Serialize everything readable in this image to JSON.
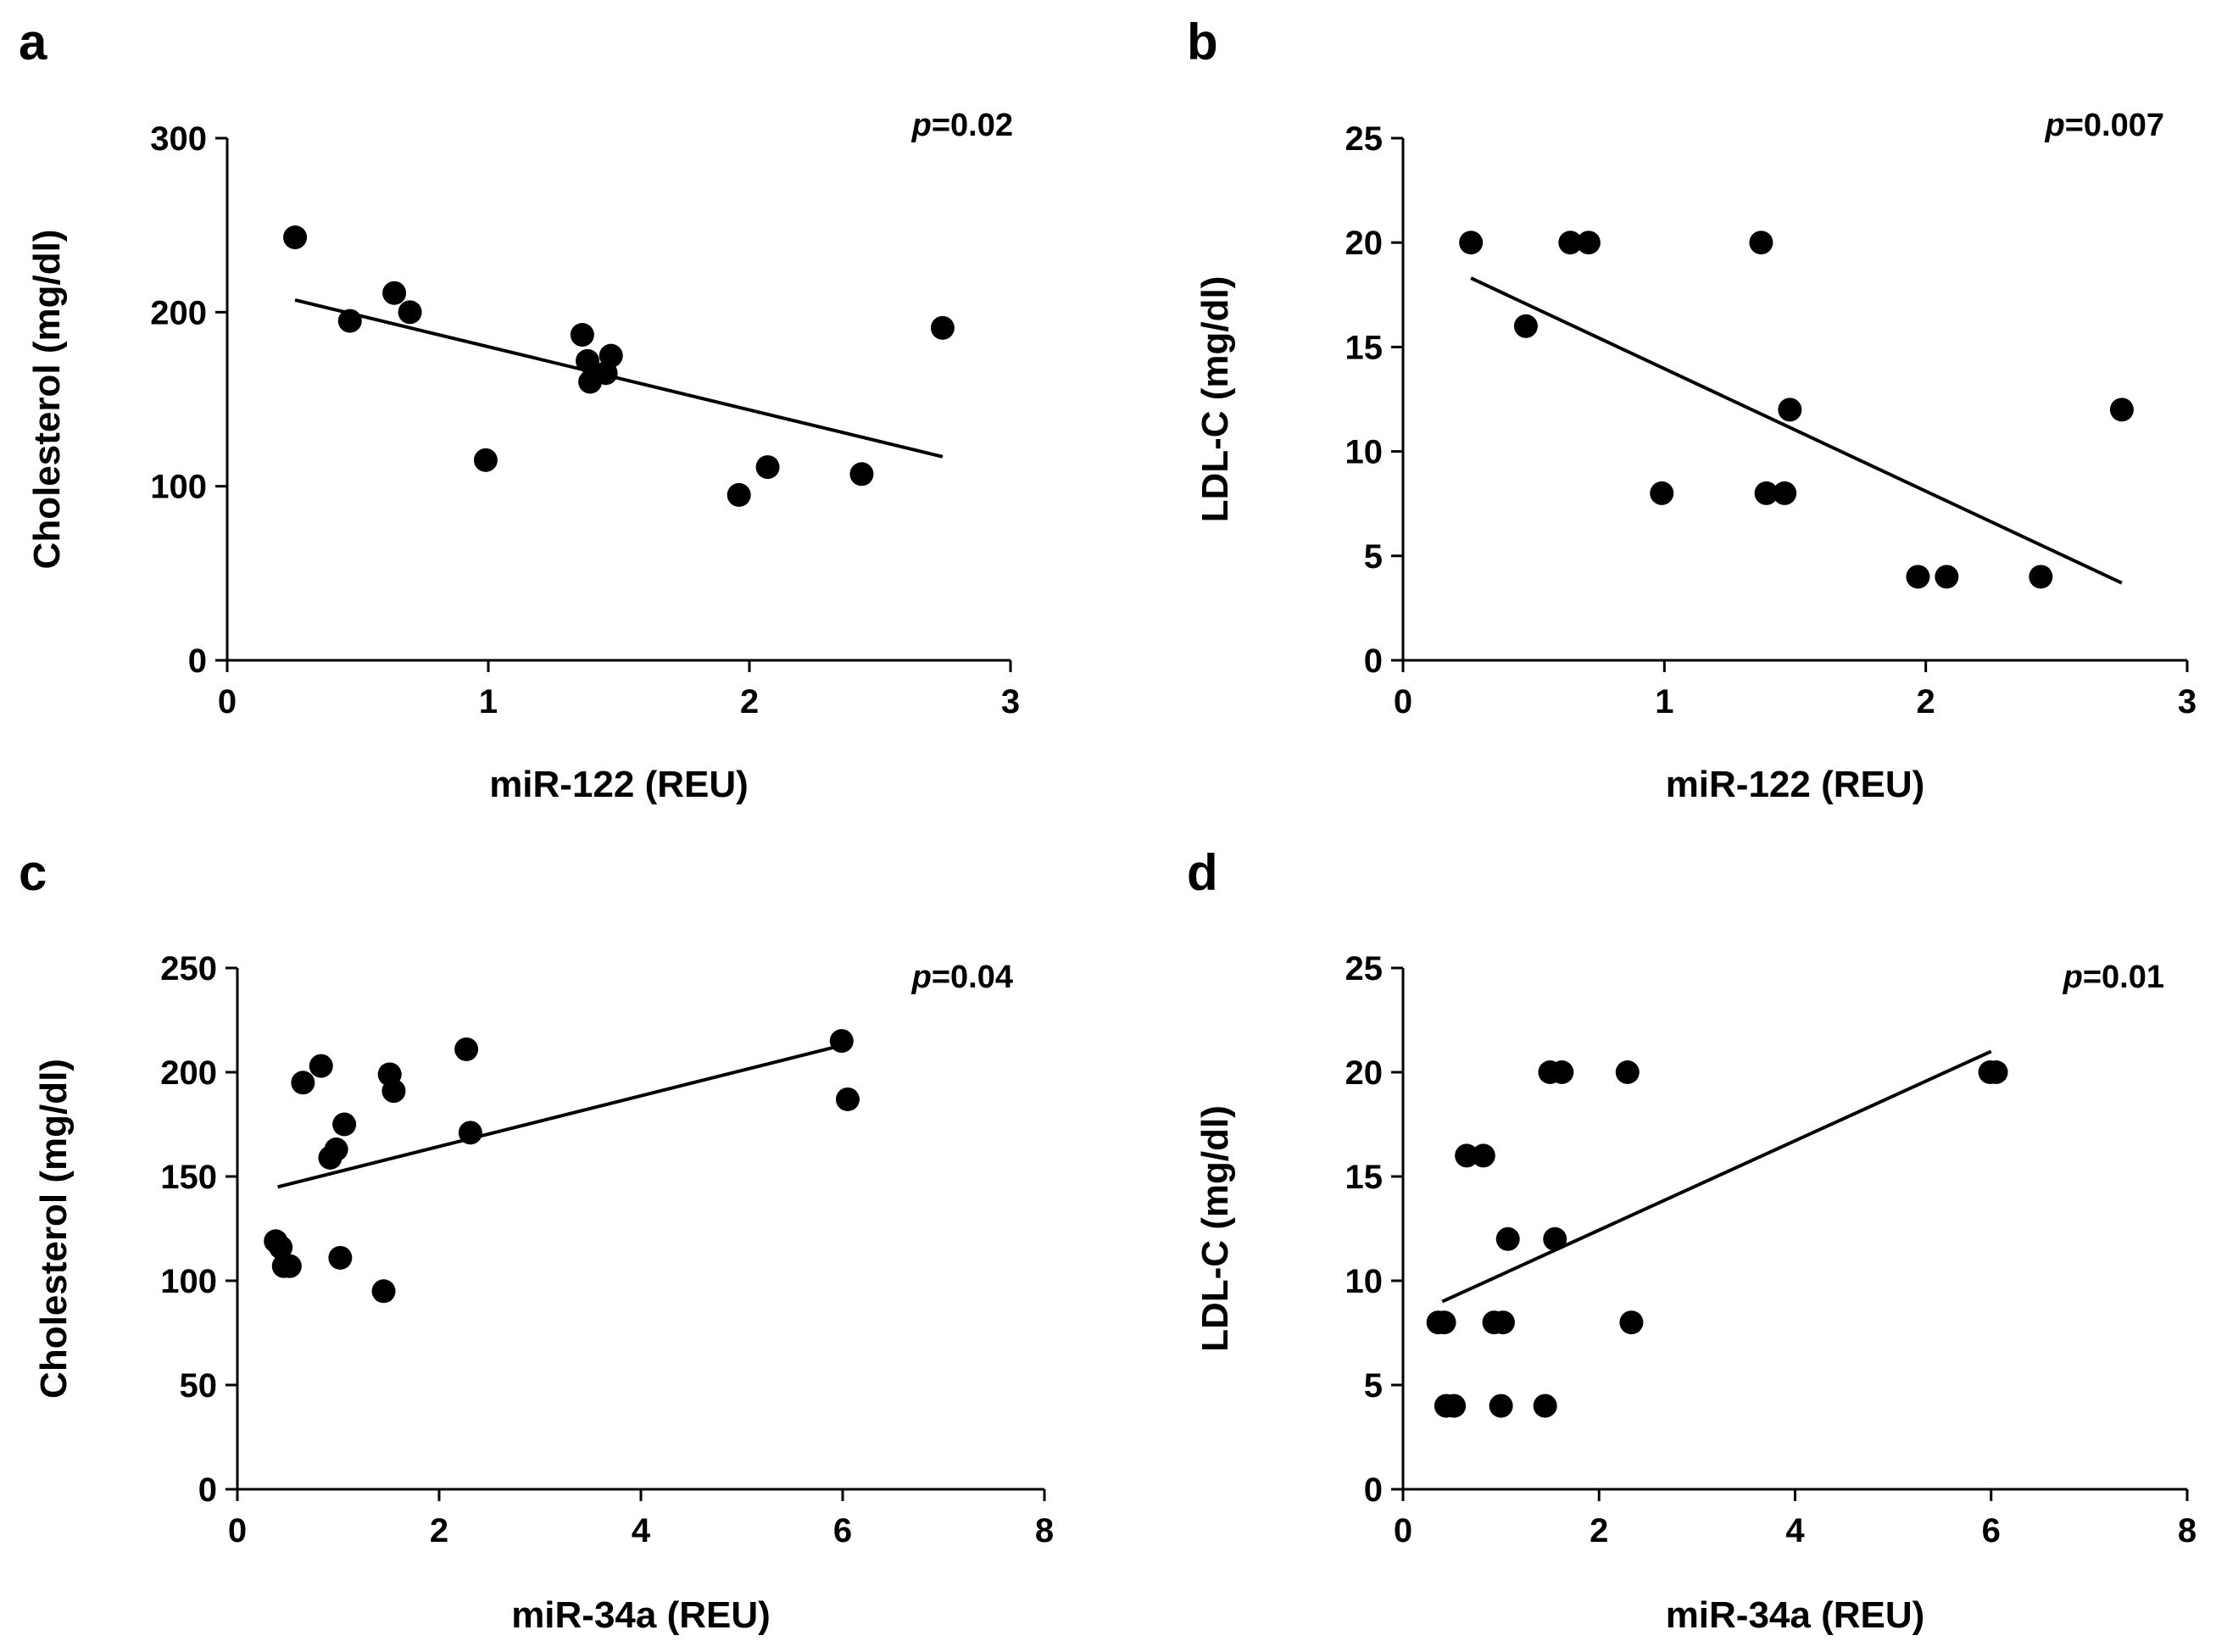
{
  "chart_data": [
    {
      "panel": "a",
      "type": "scatter",
      "xlabel": "miR-122 (REU)",
      "ylabel": "Cholesterol (mg/dl)",
      "xlim": [
        0,
        3
      ],
      "ylim": [
        0,
        300
      ],
      "xticks": [
        0,
        1,
        2,
        3
      ],
      "yticks": [
        0,
        100,
        200,
        300
      ],
      "p_prefix": "p",
      "p_value": "=0.02",
      "points": [
        [
          0.26,
          243
        ],
        [
          0.47,
          195
        ],
        [
          0.64,
          211
        ],
        [
          0.7,
          200
        ],
        [
          0.99,
          115
        ],
        [
          1.36,
          187
        ],
        [
          1.38,
          172
        ],
        [
          1.39,
          160
        ],
        [
          1.45,
          165
        ],
        [
          1.47,
          175
        ],
        [
          1.96,
          95
        ],
        [
          2.07,
          111
        ],
        [
          2.43,
          107
        ],
        [
          2.74,
          191
        ]
      ],
      "fit": [
        [
          0.26,
          207
        ],
        [
          2.74,
          117
        ]
      ]
    },
    {
      "panel": "b",
      "type": "scatter",
      "xlabel": "miR-122 (REU)",
      "ylabel": "LDL-C (mg/dl)",
      "xlim": [
        0,
        3
      ],
      "ylim": [
        0,
        25
      ],
      "xticks": [
        0,
        1,
        2,
        3
      ],
      "yticks": [
        0,
        5,
        10,
        15,
        20,
        25
      ],
      "p_prefix": "p",
      "p_value": "=0.007",
      "points": [
        [
          0.26,
          20
        ],
        [
          0.47,
          16
        ],
        [
          0.64,
          20
        ],
        [
          0.71,
          20
        ],
        [
          0.99,
          8
        ],
        [
          1.37,
          20
        ],
        [
          1.39,
          8
        ],
        [
          1.46,
          8
        ],
        [
          1.48,
          12
        ],
        [
          1.97,
          4
        ],
        [
          2.08,
          4
        ],
        [
          2.44,
          4
        ],
        [
          2.75,
          12
        ]
      ],
      "fit": [
        [
          0.26,
          18.3
        ],
        [
          2.75,
          3.7
        ]
      ]
    },
    {
      "panel": "c",
      "type": "scatter",
      "xlabel": "miR-34a (REU)",
      "ylabel": "Cholesterol (mg/dl)",
      "xlim": [
        0,
        8
      ],
      "ylim": [
        0,
        250
      ],
      "xticks": [
        0,
        2,
        4,
        6,
        8
      ],
      "yticks": [
        0,
        50,
        100,
        150,
        200,
        250
      ],
      "p_prefix": "p",
      "p_value": "=0.04",
      "points": [
        [
          0.38,
          119
        ],
        [
          0.43,
          116
        ],
        [
          0.46,
          107
        ],
        [
          0.52,
          107
        ],
        [
          0.65,
          195
        ],
        [
          0.83,
          203
        ],
        [
          0.92,
          159
        ],
        [
          0.98,
          163
        ],
        [
          1.02,
          111
        ],
        [
          1.06,
          175
        ],
        [
          1.45,
          95
        ],
        [
          1.51,
          199
        ],
        [
          1.55,
          191
        ],
        [
          2.27,
          211
        ],
        [
          2.31,
          171
        ],
        [
          5.99,
          215
        ],
        [
          6.05,
          187
        ]
      ],
      "fit": [
        [
          0.4,
          145
        ],
        [
          6.0,
          213
        ]
      ]
    },
    {
      "panel": "d",
      "type": "scatter",
      "xlabel": "miR-34a (REU)",
      "ylabel": "LDL-C (mg/dl)",
      "xlim": [
        0,
        8
      ],
      "ylim": [
        0,
        25
      ],
      "xticks": [
        0,
        2,
        4,
        6,
        8
      ],
      "yticks": [
        0,
        5,
        10,
        15,
        20,
        25
      ],
      "p_prefix": "p",
      "p_value": "=0.01",
      "points": [
        [
          0.36,
          8
        ],
        [
          0.42,
          8
        ],
        [
          0.44,
          4
        ],
        [
          0.52,
          4
        ],
        [
          0.65,
          16
        ],
        [
          0.82,
          16
        ],
        [
          0.93,
          8
        ],
        [
          1.0,
          4
        ],
        [
          1.02,
          8
        ],
        [
          1.07,
          12
        ],
        [
          1.45,
          4
        ],
        [
          1.5,
          20
        ],
        [
          1.55,
          12
        ],
        [
          1.62,
          20
        ],
        [
          2.29,
          20
        ],
        [
          2.33,
          8
        ],
        [
          5.99,
          20
        ],
        [
          6.05,
          20
        ]
      ],
      "fit": [
        [
          0.4,
          9.0
        ],
        [
          6.0,
          21.0
        ]
      ]
    }
  ]
}
